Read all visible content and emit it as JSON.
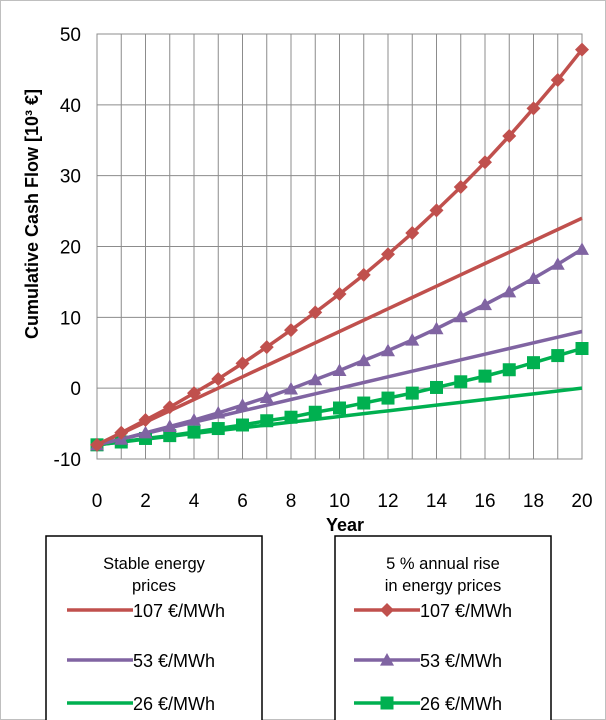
{
  "chart_data": {
    "type": "line",
    "title": "",
    "xlabel": "Year",
    "ylabel": "Cumulative Cash Flow [10³ €]",
    "xlim": [
      0,
      20
    ],
    "ylim": [
      -10,
      50
    ],
    "x_ticks": [
      0,
      2,
      4,
      6,
      8,
      10,
      12,
      14,
      16,
      18,
      20
    ],
    "y_ticks": [
      -10,
      0,
      10,
      20,
      30,
      40,
      50
    ],
    "grid": true,
    "x": [
      0,
      1,
      2,
      3,
      4,
      5,
      6,
      7,
      8,
      9,
      10,
      11,
      12,
      13,
      14,
      15,
      16,
      17,
      18,
      19,
      20
    ],
    "legend_groups": [
      {
        "title": "Stable energy prices"
      },
      {
        "title": "5 % annual rise in energy prices"
      }
    ],
    "series": [
      {
        "name": "107 €/MWh",
        "group": 0,
        "color": "#c0504d",
        "marker": "none",
        "values": [
          -8.0,
          -6.4,
          -4.8,
          -3.2,
          -1.6,
          0.0,
          1.6,
          3.2,
          4.8,
          6.4,
          8.0,
          9.6,
          11.2,
          12.8,
          14.4,
          16.0,
          17.6,
          19.2,
          20.8,
          22.4,
          24.0
        ]
      },
      {
        "name": "53 €/MWh",
        "group": 0,
        "color": "#8064a2",
        "marker": "none",
        "values": [
          -8.0,
          -7.2,
          -6.4,
          -5.6,
          -4.8,
          -4.0,
          -3.2,
          -2.4,
          -1.6,
          -0.8,
          0.0,
          0.8,
          1.6,
          2.4,
          3.2,
          4.0,
          4.8,
          5.6,
          6.4,
          7.2,
          8.0
        ]
      },
      {
        "name": "26 €/MWh",
        "group": 0,
        "color": "#00b050",
        "marker": "none",
        "values": [
          -8.0,
          -7.6,
          -7.2,
          -6.8,
          -6.4,
          -6.0,
          -5.6,
          -5.2,
          -4.8,
          -4.4,
          -4.0,
          -3.6,
          -3.2,
          -2.8,
          -2.4,
          -2.0,
          -1.6,
          -1.2,
          -0.8,
          -0.4,
          0.0
        ]
      },
      {
        "name": "107 €/MWh",
        "group": 1,
        "color": "#c0504d",
        "marker": "diamond",
        "values": [
          -8.0,
          -6.3,
          -4.5,
          -2.7,
          -0.7,
          1.3,
          3.5,
          5.8,
          8.2,
          10.7,
          13.3,
          16.0,
          18.9,
          21.9,
          25.1,
          28.4,
          31.9,
          35.6,
          39.5,
          43.5,
          47.8
        ]
      },
      {
        "name": "53 €/MWh",
        "group": 1,
        "color": "#8064a2",
        "marker": "triangle",
        "values": [
          -8.0,
          -7.2,
          -6.3,
          -5.4,
          -4.5,
          -3.5,
          -2.4,
          -1.3,
          -0.1,
          1.2,
          2.5,
          3.9,
          5.3,
          6.8,
          8.4,
          10.1,
          11.8,
          13.6,
          15.5,
          17.5,
          19.6
        ]
      },
      {
        "name": "26 €/MWh",
        "group": 1,
        "color": "#00b050",
        "marker": "square",
        "values": [
          -8.0,
          -7.6,
          -7.1,
          -6.7,
          -6.2,
          -5.7,
          -5.2,
          -4.6,
          -4.1,
          -3.4,
          -2.8,
          -2.1,
          -1.4,
          -0.7,
          0.1,
          0.9,
          1.7,
          2.6,
          3.6,
          4.6,
          5.6
        ]
      }
    ]
  }
}
